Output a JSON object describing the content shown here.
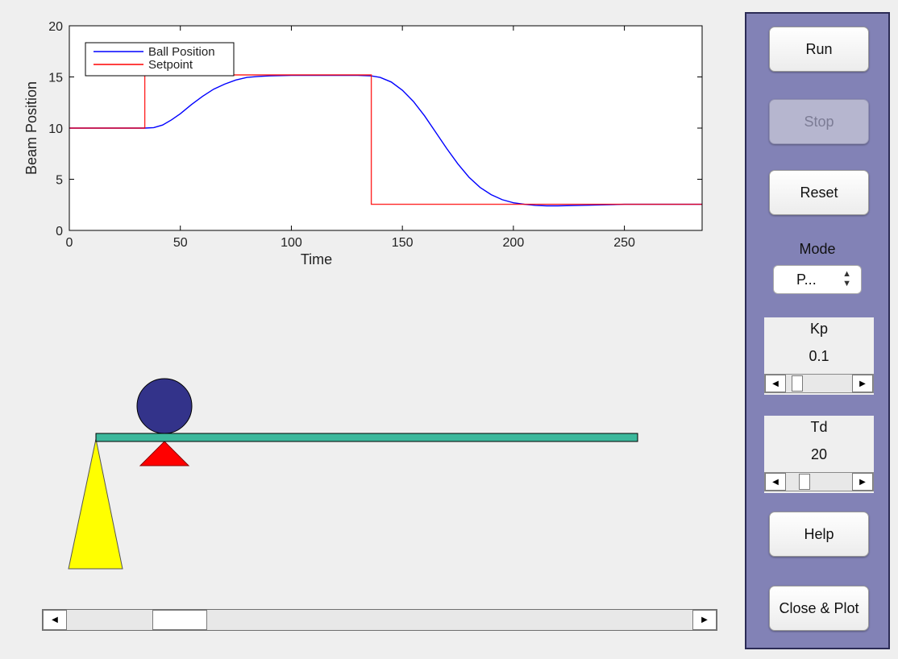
{
  "chart_data": {
    "type": "line",
    "xlabel": "Time",
    "ylabel": "Beam Position",
    "xlim": [
      0,
      285
    ],
    "ylim": [
      0,
      20
    ],
    "xticks": [
      0,
      50,
      100,
      150,
      200,
      250
    ],
    "yticks": [
      0,
      5,
      10,
      15,
      20
    ],
    "legend_position": "top-left",
    "grid": false,
    "series": [
      {
        "name": "Ball Position",
        "color": "#0000ff",
        "x": [
          0,
          34,
          38,
          42,
          46,
          50,
          55,
          60,
          65,
          70,
          75,
          80,
          85,
          90,
          100,
          110,
          120,
          130,
          136,
          140,
          145,
          150,
          155,
          160,
          165,
          170,
          175,
          180,
          185,
          190,
          195,
          200,
          205,
          210,
          215,
          220,
          230,
          240,
          250,
          260,
          270,
          285
        ],
        "y": [
          10,
          10,
          10.05,
          10.3,
          10.8,
          11.4,
          12.3,
          13.1,
          13.8,
          14.3,
          14.7,
          14.95,
          15.05,
          15.1,
          15.15,
          15.15,
          15.15,
          15.15,
          15.1,
          14.95,
          14.5,
          13.7,
          12.6,
          11.2,
          9.6,
          8.0,
          6.5,
          5.2,
          4.2,
          3.5,
          3.0,
          2.7,
          2.55,
          2.45,
          2.4,
          2.4,
          2.45,
          2.5,
          2.55,
          2.55,
          2.55,
          2.55
        ]
      },
      {
        "name": "Setpoint",
        "color": "#ff0000",
        "x": [
          0,
          34,
          34,
          136,
          136,
          285
        ],
        "y": [
          10,
          10,
          15.2,
          15.2,
          2.55,
          2.55
        ]
      }
    ]
  },
  "controls": {
    "run": "Run",
    "stop": "Stop",
    "reset": "Reset",
    "mode_label": "Mode",
    "mode_value": "P...",
    "kp_label": "Kp",
    "kp_value": "0.1",
    "td_label": "Td",
    "td_value": "20",
    "help": "Help",
    "close_plot": "Close & Plot"
  },
  "sliders": {
    "kp_fraction": 0.1,
    "td_fraction": 0.24,
    "bottom_fraction": 0.15
  },
  "colors": {
    "panel": "#8282b6",
    "beam": "#3cb89c",
    "ball": "#33338a",
    "pivot": "#ff0000",
    "support": "#ffff00"
  }
}
